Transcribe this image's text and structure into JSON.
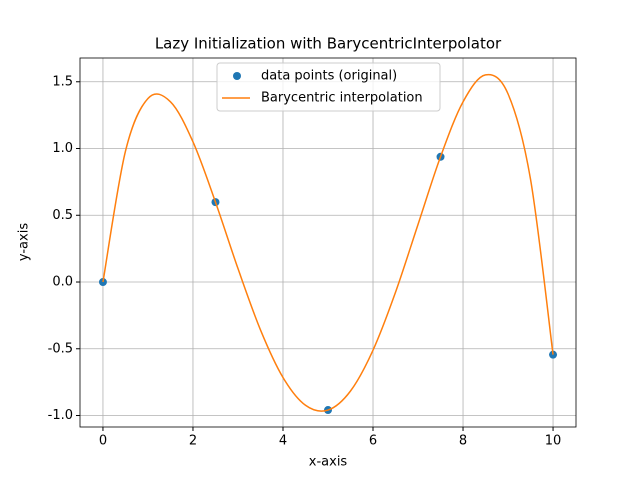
{
  "chart_data": {
    "type": "line",
    "title": "Lazy Initialization with BarycentricInterpolator",
    "x_label": "x-axis",
    "y_label": "y-axis",
    "xlim": [
      -0.51,
      10.51
    ],
    "ylim": [
      -1.086,
      1.678
    ],
    "xticks": [
      0,
      2,
      4,
      6,
      8,
      10
    ],
    "yticks": [
      -1.0,
      -0.5,
      0.0,
      0.5,
      1.0,
      1.5
    ],
    "grid": true,
    "legend": "upper center",
    "series": [
      {
        "name": "data points (original)",
        "kind": "scatter",
        "color": "#1f77b4",
        "x": [
          0,
          2.5,
          5,
          7.5,
          10
        ],
        "values": [
          0,
          0.5985,
          -0.9589,
          0.938,
          -0.544
        ]
      },
      {
        "name": "Barycentric interpolation",
        "kind": "line",
        "color": "#ff7f0e",
        "x": [
          0,
          0.5,
          1,
          1.5,
          2,
          2.5,
          3,
          3.5,
          4,
          4.5,
          5,
          5.5,
          6,
          6.5,
          7,
          7.5,
          8,
          8.5,
          9,
          9.5,
          10
        ],
        "values": [
          0,
          0.9796,
          1.3748,
          1.3501,
          1.0498,
          0.5985,
          0.1008,
          -0.3587,
          -0.715,
          -0.9234,
          -0.9589,
          -0.8164,
          -0.5107,
          -0.0767,
          0.4311,
          0.938,
          1.3496,
          1.5514,
          1.4092,
          0.7687,
          -0.544
        ]
      }
    ]
  }
}
